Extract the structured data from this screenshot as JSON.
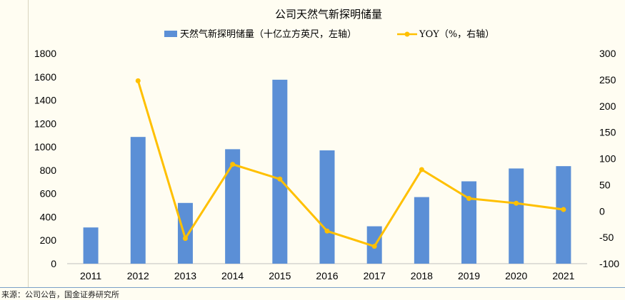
{
  "footer": {
    "source": "来源：公司公告，国金证券研究所"
  },
  "chart_data": {
    "type": "bar",
    "title": "公司天然气新探明储量",
    "categories": [
      "2011",
      "2012",
      "2013",
      "2014",
      "2015",
      "2016",
      "2017",
      "2018",
      "2019",
      "2020",
      "2021"
    ],
    "series": [
      {
        "name": "天然气新探明储量（十亿立方英尺，左轴）",
        "type": "bar",
        "axis": "left",
        "color": "#5b8fd6",
        "values": [
          310,
          1085,
          520,
          980,
          1575,
          970,
          320,
          570,
          705,
          815,
          835
        ]
      },
      {
        "name": "YOY（%，右轴）",
        "type": "line",
        "axis": "right",
        "color": "#ffc000",
        "values": [
          null,
          248,
          -52,
          89,
          61,
          -38,
          -67,
          79,
          24,
          15,
          3
        ]
      }
    ],
    "y_left": {
      "min": 0,
      "max": 1800,
      "step": 200,
      "ticks": [
        "0",
        "200",
        "400",
        "600",
        "800",
        "1000",
        "1200",
        "1400",
        "1600",
        "1800"
      ]
    },
    "y_right": {
      "min": -100,
      "max": 300,
      "step": 50,
      "ticks": [
        "-100",
        "-50",
        "0",
        "50",
        "100",
        "150",
        "200",
        "250",
        "300"
      ]
    },
    "legend_position": "top",
    "grid": false
  }
}
